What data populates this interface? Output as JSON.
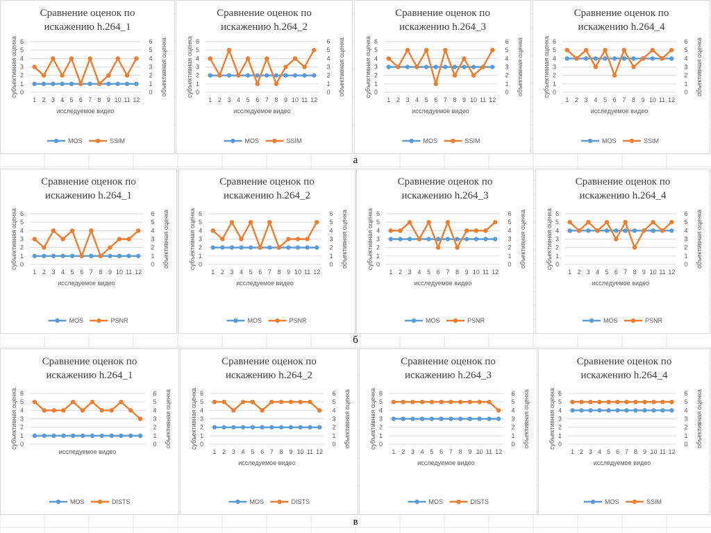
{
  "common": {
    "ylabel_left": "субъективная оценка",
    "ylabel_right": "объективная оценка",
    "xlabel": "исследуемое видео",
    "ylim": [
      0,
      6
    ],
    "y_ticks": [
      0,
      1,
      2,
      3,
      4,
      5,
      6
    ],
    "x_categories": [
      1,
      2,
      3,
      4,
      5,
      6,
      7,
      8,
      9,
      10,
      11,
      12
    ]
  },
  "colors": {
    "mos": "#5b9bd5",
    "metric": "#ed7d31",
    "grid": "#d9d9d9",
    "text": "#595959"
  },
  "rows": [
    {
      "label": "а"
    },
    {
      "label": "б"
    },
    {
      "label": "в"
    }
  ],
  "chart_data": [
    {
      "type": "line",
      "title": "Сравнение оценок по искажению h.264_1",
      "series": [
        {
          "name": "MOS",
          "values": [
            1,
            1,
            1,
            1,
            1,
            1,
            1,
            1,
            1,
            1,
            1,
            1
          ]
        },
        {
          "name": "SSIM",
          "values": [
            3,
            2,
            4,
            2,
            4,
            1,
            4,
            1,
            2,
            4,
            2,
            4
          ]
        }
      ]
    },
    {
      "type": "line",
      "title": "Сравнение оценок по искажению h.264_2",
      "series": [
        {
          "name": "MOS",
          "values": [
            2,
            2,
            2,
            2,
            2,
            2,
            2,
            2,
            2,
            2,
            2,
            2
          ]
        },
        {
          "name": "SSIM",
          "values": [
            4,
            2,
            5,
            2,
            4,
            1,
            4,
            1,
            3,
            4,
            3,
            5
          ]
        }
      ]
    },
    {
      "type": "line",
      "title": "Сравнение оценок по искажению h.264_3",
      "series": [
        {
          "name": "MOS",
          "values": [
            3,
            3,
            3,
            3,
            3,
            3,
            3,
            3,
            3,
            3,
            3,
            3
          ]
        },
        {
          "name": "SSIM",
          "values": [
            4,
            3,
            5,
            3,
            5,
            1,
            5,
            2,
            4,
            2,
            3,
            5
          ]
        }
      ]
    },
    {
      "type": "line",
      "title": "Сравнение оценок по искажению h.264_4",
      "series": [
        {
          "name": "MOS",
          "values": [
            4,
            4,
            4,
            4,
            4,
            4,
            4,
            4,
            4,
            4,
            4,
            4
          ]
        },
        {
          "name": "SSIM",
          "values": [
            5,
            4,
            5,
            3,
            5,
            2,
            5,
            3,
            4,
            5,
            4,
            5
          ]
        }
      ]
    },
    {
      "type": "line",
      "title": "Сравнение оценок по искажению h.264_1",
      "series": [
        {
          "name": "MOS",
          "values": [
            1,
            1,
            1,
            1,
            1,
            1,
            1,
            1,
            1,
            1,
            1,
            1
          ]
        },
        {
          "name": "PSNR",
          "values": [
            3,
            2,
            4,
            3,
            4,
            1,
            4,
            1,
            2,
            3,
            3,
            4
          ]
        }
      ]
    },
    {
      "type": "line",
      "title": "Сравнение оценок по искажению h.264_2",
      "series": [
        {
          "name": "MOS",
          "values": [
            2,
            2,
            2,
            2,
            2,
            2,
            2,
            2,
            2,
            2,
            2,
            2
          ]
        },
        {
          "name": "PSNR",
          "values": [
            4,
            3,
            5,
            3,
            5,
            2,
            5,
            2,
            3,
            3,
            3,
            5
          ]
        }
      ]
    },
    {
      "type": "line",
      "title": "Сравнение оценок по искажению h.264_3",
      "series": [
        {
          "name": "MOS",
          "values": [
            3,
            3,
            3,
            3,
            3,
            3,
            3,
            3,
            3,
            3,
            3,
            3
          ]
        },
        {
          "name": "PSNR",
          "values": [
            4,
            4,
            5,
            3,
            5,
            2,
            5,
            2,
            4,
            4,
            4,
            5
          ]
        }
      ]
    },
    {
      "type": "line",
      "title": "Сравнение оценок по искажению h.264_4",
      "series": [
        {
          "name": "MOS",
          "values": [
            4,
            4,
            4,
            4,
            4,
            4,
            4,
            4,
            4,
            4,
            4,
            4
          ]
        },
        {
          "name": "PSNR",
          "values": [
            5,
            4,
            5,
            4,
            5,
            3,
            5,
            2,
            4,
            5,
            4,
            5
          ]
        }
      ]
    },
    {
      "type": "line",
      "title": "Сравнение оценок по искажению h.264_1",
      "show_x_ticks": false,
      "series": [
        {
          "name": "MOS",
          "values": [
            1,
            1,
            1,
            1,
            1,
            1,
            1,
            1,
            1,
            1,
            1,
            1
          ]
        },
        {
          "name": "DISTS",
          "values": [
            5,
            4,
            4,
            4,
            5,
            4,
            5,
            4,
            4,
            5,
            4,
            3
          ]
        }
      ]
    },
    {
      "type": "line",
      "title": "Сравнение оценок по искажению h.264_2",
      "series": [
        {
          "name": "MOS",
          "values": [
            2,
            2,
            2,
            2,
            2,
            2,
            2,
            2,
            2,
            2,
            2,
            2
          ]
        },
        {
          "name": "DISTS",
          "values": [
            5,
            5,
            4,
            5,
            5,
            4,
            5,
            5,
            5,
            5,
            5,
            4
          ]
        }
      ]
    },
    {
      "type": "line",
      "title": "Сравнение оценок по искажению h.264_3",
      "series": [
        {
          "name": "MOS",
          "values": [
            3,
            3,
            3,
            3,
            3,
            3,
            3,
            3,
            3,
            3,
            3,
            3
          ]
        },
        {
          "name": "DISTS",
          "values": [
            5,
            5,
            5,
            5,
            5,
            5,
            5,
            5,
            5,
            5,
            5,
            4
          ]
        }
      ]
    },
    {
      "type": "line",
      "title": "Сравнение оценок по искажению h.264_4",
      "series": [
        {
          "name": "MOS",
          "values": [
            4,
            4,
            4,
            4,
            4,
            4,
            4,
            4,
            4,
            4,
            4,
            4
          ]
        },
        {
          "name": "SSIM",
          "values": [
            5,
            5,
            5,
            5,
            5,
            5,
            5,
            5,
            5,
            5,
            5,
            5
          ]
        }
      ]
    }
  ]
}
